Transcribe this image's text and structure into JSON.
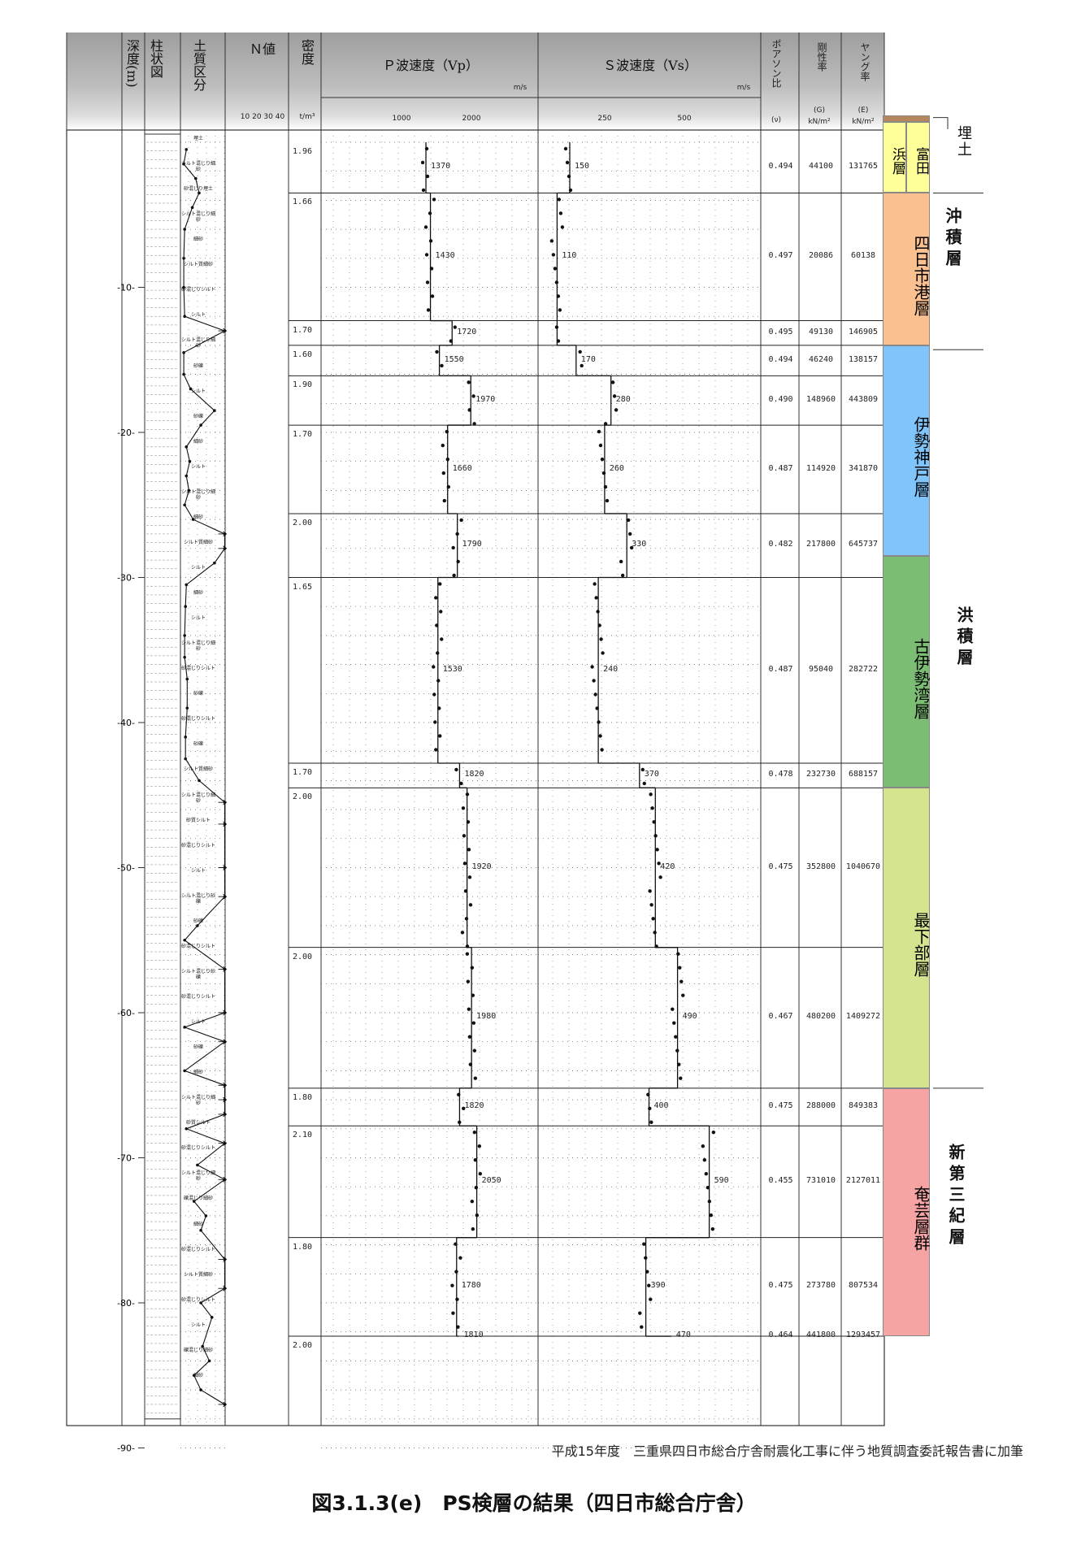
{
  "header": {
    "depth": "深度(m)",
    "column": "柱状図",
    "soil": "土質区分",
    "n_value": "Ｎ値",
    "n_scale": "10 20 30 40",
    "density": "密度",
    "density_unit": "t/m³",
    "vp": "Ｐ波速度（Vp）",
    "vp_unit": "m/s",
    "vp_ticks": [
      "1000",
      "2000"
    ],
    "vs": "Ｓ波速度（Vs）",
    "vs_unit": "m/s",
    "vs_ticks": [
      "250",
      "500"
    ],
    "poisson": "ポアソン比",
    "poisson_unit": "(ν)",
    "shear": "剛性率",
    "shear_unit": "(G)",
    "shear_unit2": "kN/m²",
    "young": "ヤング率",
    "young_unit": "(E)",
    "young_unit2": "kN/m²"
  },
  "depth_ticks": [
    "10",
    "20",
    "30",
    "40",
    "50",
    "60",
    "70",
    "80",
    "90"
  ],
  "rows": [
    {
      "density": "1.96",
      "vp": "1370",
      "vs": "150",
      "poisson": "0.494",
      "G": "44100",
      "E": "131765"
    },
    {
      "density": "1.66",
      "vp": "1430",
      "vs": "110",
      "poisson": "0.497",
      "G": "20086",
      "E": "60138"
    },
    {
      "density": "1.70",
      "vp": "1720",
      "vs": "",
      "poisson": "0.495",
      "G": "49130",
      "E": "146905"
    },
    {
      "density": "1.60",
      "vp": "1550",
      "vs": "170",
      "poisson": "0.494",
      "G": "46240",
      "E": "138157"
    },
    {
      "density": "1.90",
      "vp": "1970",
      "vs": "280",
      "poisson": "0.490",
      "G": "148960",
      "E": "443809"
    },
    {
      "density": "1.70",
      "vp": "1660",
      "vs": "260",
      "poisson": "0.487",
      "G": "114920",
      "E": "341870"
    },
    {
      "density": "2.00",
      "vp": "1790",
      "vs": "330",
      "poisson": "0.482",
      "G": "217800",
      "E": "645737"
    },
    {
      "density": "1.65",
      "vp": "1530",
      "vs": "240",
      "poisson": "0.487",
      "G": "95040",
      "E": "282722"
    },
    {
      "density": "1.70",
      "vp": "1820",
      "vs": "370",
      "poisson": "0.478",
      "G": "232730",
      "E": "688157"
    },
    {
      "density": "2.00",
      "vp": "1920",
      "vs": "420",
      "poisson": "0.475",
      "G": "352800",
      "E": "1040670"
    },
    {
      "density": "2.00",
      "vp": "1980",
      "vs": "490",
      "poisson": "0.467",
      "G": "480200",
      "E": "1409272"
    },
    {
      "density": "1.80",
      "vp": "1820",
      "vs": "400",
      "poisson": "0.475",
      "G": "288000",
      "E": "849383"
    },
    {
      "density": "2.10",
      "vp": "2050",
      "vs": "590",
      "poisson": "0.455",
      "G": "731010",
      "E": "2127011"
    },
    {
      "density": "1.80",
      "vp": "1780",
      "vs": "390",
      "poisson": "0.475",
      "G": "273780",
      "E": "807534"
    },
    {
      "density": "2.00",
      "vp": "1810",
      "vs": "470",
      "poisson": "0.464",
      "G": "441800",
      "E": "1293457"
    }
  ],
  "soil_labels": [
    "埋土",
    "シルト混じり細砂",
    "砂混じり埋土",
    "シルト混じり細砂",
    "細砂",
    "シルト質細砂",
    "砂混じりシルト",
    "シルト",
    "シルト混じり細砂",
    "砂礫",
    "シルト",
    "砂礫",
    "細砂",
    "シルト",
    "シルト混じり細砂",
    "細砂",
    "シルト質細砂",
    "シルト",
    "細砂",
    "シルト",
    "シルト混じり細砂",
    "砂混じりシルト",
    "砂礫",
    "砂混じりシルト",
    "砂礫",
    "シルト質細砂",
    "シルト混じり細砂",
    "砂質シルト",
    "砂混じりシルト",
    "シルト",
    "シルト混じり砂礫",
    "砂礫",
    "砂混じりシルト",
    "シルト混じり砂礫",
    "砂混じりシルト",
    "シルト",
    "砂礫",
    "細砂",
    "シルト混じり細砂",
    "砂質シルト",
    "砂混じりシルト",
    "シルト混じり細砂",
    "礫混じり細砂",
    "細砂",
    "砂混じりシルト",
    "シルト質細砂",
    "砂混じりシルト",
    "シルト",
    "礫混じり細砂",
    "細砂"
  ],
  "strata": [
    {
      "name": "浜層",
      "color": "#ffff99"
    },
    {
      "name": "富田",
      "color": "#ffff99"
    },
    {
      "name": "四日市港層",
      "color": "#fac090"
    },
    {
      "name": "伊勢神戸層",
      "color": "#7fc4fa"
    },
    {
      "name": "古伊勢湾層",
      "color": "#7bbd73"
    },
    {
      "name": "最下部層",
      "color": "#d4e48f"
    },
    {
      "name": "奄芸層群",
      "color": "#f5a3a3"
    }
  ],
  "groups": [
    "埋土",
    "沖積層",
    "洪積層",
    "新第三紀層"
  ],
  "top_band_color": "#b8865b",
  "footer_note": "平成15年度　三重県四日市総合庁舎耐震化工事に伴う地質調査委託報告書に加筆",
  "caption": "図3.1.3(e)　PS検層の結果（四日市総合庁舎）"
}
